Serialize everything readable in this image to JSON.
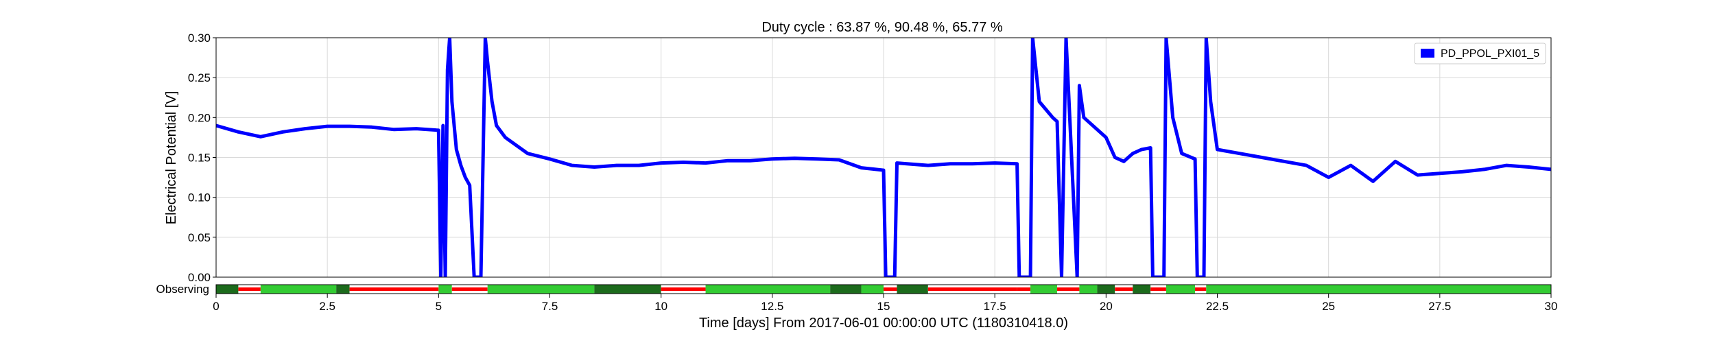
{
  "chart_data": {
    "type": "line",
    "title": "Duty cycle : 63.87 %, 90.48 %, 65.77 %",
    "xlabel": "Time [days] From 2017-06-01 00:00:00 UTC (1180310418.0)",
    "ylabel": "Electrical Potential [V]",
    "xlim": [
      0,
      30
    ],
    "ylim": [
      0,
      0.3
    ],
    "x_ticks": [
      0,
      2.5,
      5,
      7.5,
      10,
      12.5,
      15,
      17.5,
      20,
      22.5,
      25,
      27.5,
      30
    ],
    "x_tick_labels": [
      "0",
      "2.5",
      "5",
      "7.5",
      "10",
      "12.5",
      "15",
      "17.5",
      "20",
      "22.5",
      "25",
      "27.5",
      "30"
    ],
    "y_ticks": [
      0,
      0.05,
      0.1,
      0.15,
      0.2,
      0.25,
      0.3
    ],
    "y_tick_labels": [
      "0.00",
      "0.05",
      "0.10",
      "0.15",
      "0.20",
      "0.25",
      "0.30"
    ],
    "grid": true,
    "legend_position": "top-right",
    "series": [
      {
        "name": "PD_PPOL_PXI01_5",
        "color": "#0000ff",
        "x": [
          0,
          0.5,
          1,
          1.5,
          2,
          2.5,
          3,
          3.5,
          4,
          4.5,
          5,
          5.05,
          5.1,
          5.15,
          5.2,
          5.25,
          5.3,
          5.4,
          5.5,
          5.6,
          5.7,
          5.8,
          5.95,
          6.05,
          6.1,
          6.2,
          6.3,
          6.5,
          7,
          7.5,
          8,
          8.5,
          9,
          9.5,
          10,
          10.5,
          11,
          11.5,
          12,
          12.5,
          13,
          13.5,
          14,
          14.5,
          15,
          15.05,
          15.1,
          15.25,
          15.3,
          16,
          16.5,
          17,
          17.5,
          18,
          18.05,
          18.1,
          18.3,
          18.35,
          18.5,
          18.8,
          18.9,
          19,
          19.1,
          19.35,
          19.4,
          19.5,
          19.8,
          20,
          20.2,
          20.4,
          20.6,
          20.8,
          21,
          21.05,
          21.1,
          21.3,
          21.35,
          21.5,
          21.7,
          22,
          22.05,
          22.2,
          22.25,
          22.35,
          22.5,
          23,
          23.5,
          24,
          24.5,
          25,
          25.5,
          26,
          26.5,
          27,
          27.5,
          28,
          28.5,
          29,
          29.5,
          30
        ],
        "y": [
          0.19,
          0.182,
          0.176,
          0.182,
          0.186,
          0.189,
          0.189,
          0.188,
          0.185,
          0.186,
          0.184,
          0.0,
          0.19,
          0.0,
          0.26,
          0.3,
          0.22,
          0.16,
          0.14,
          0.125,
          0.115,
          0.0,
          0.0,
          0.3,
          0.27,
          0.22,
          0.19,
          0.175,
          0.155,
          0.148,
          0.14,
          0.138,
          0.14,
          0.14,
          0.143,
          0.144,
          0.143,
          0.146,
          0.146,
          0.148,
          0.149,
          0.148,
          0.147,
          0.137,
          0.134,
          0.0,
          0.0,
          0.0,
          0.143,
          0.14,
          0.142,
          0.142,
          0.143,
          0.142,
          0.0,
          0.0,
          0.0,
          0.3,
          0.22,
          0.2,
          0.195,
          0.0,
          0.3,
          0.0,
          0.24,
          0.2,
          0.185,
          0.175,
          0.15,
          0.145,
          0.155,
          0.16,
          0.162,
          0.0,
          0.0,
          0.0,
          0.3,
          0.2,
          0.155,
          0.148,
          0.0,
          0.0,
          0.3,
          0.22,
          0.16,
          0.155,
          0.15,
          0.145,
          0.14,
          0.125,
          0.14,
          0.12,
          0.145,
          0.128,
          0.13,
          0.132,
          0.135,
          0.14,
          0.138,
          0.135
        ]
      }
    ],
    "observing_bar": {
      "label": "Observing",
      "colors": {
        "observing": "#33cc33",
        "locked": "#1c6b1c",
        "down": "#ff0000"
      },
      "segments": [
        {
          "start": 0,
          "end": 0.5,
          "state": "locked"
        },
        {
          "start": 0.5,
          "end": 1.0,
          "state": "down"
        },
        {
          "start": 1.0,
          "end": 2.7,
          "state": "observing"
        },
        {
          "start": 2.7,
          "end": 3.0,
          "state": "locked"
        },
        {
          "start": 3.0,
          "end": 5.0,
          "state": "down"
        },
        {
          "start": 5.0,
          "end": 5.3,
          "state": "observing"
        },
        {
          "start": 5.3,
          "end": 6.1,
          "state": "down"
        },
        {
          "start": 6.1,
          "end": 8.5,
          "state": "observing"
        },
        {
          "start": 8.5,
          "end": 10.0,
          "state": "locked"
        },
        {
          "start": 10.0,
          "end": 11.0,
          "state": "down"
        },
        {
          "start": 11.0,
          "end": 13.8,
          "state": "observing"
        },
        {
          "start": 13.8,
          "end": 14.5,
          "state": "locked"
        },
        {
          "start": 14.5,
          "end": 15.0,
          "state": "observing"
        },
        {
          "start": 15.0,
          "end": 15.3,
          "state": "down"
        },
        {
          "start": 15.3,
          "end": 16.0,
          "state": "locked"
        },
        {
          "start": 16.0,
          "end": 18.0,
          "state": "down"
        },
        {
          "start": 18.0,
          "end": 18.3,
          "state": "down"
        },
        {
          "start": 18.3,
          "end": 18.9,
          "state": "observing"
        },
        {
          "start": 18.9,
          "end": 19.4,
          "state": "down"
        },
        {
          "start": 19.4,
          "end": 19.8,
          "state": "observing"
        },
        {
          "start": 19.8,
          "end": 20.2,
          "state": "locked"
        },
        {
          "start": 20.2,
          "end": 20.6,
          "state": "down"
        },
        {
          "start": 20.6,
          "end": 21.0,
          "state": "locked"
        },
        {
          "start": 21.0,
          "end": 21.35,
          "state": "down"
        },
        {
          "start": 21.35,
          "end": 22.0,
          "state": "observing"
        },
        {
          "start": 22.0,
          "end": 22.25,
          "state": "down"
        },
        {
          "start": 22.25,
          "end": 30.0,
          "state": "observing"
        }
      ]
    }
  }
}
